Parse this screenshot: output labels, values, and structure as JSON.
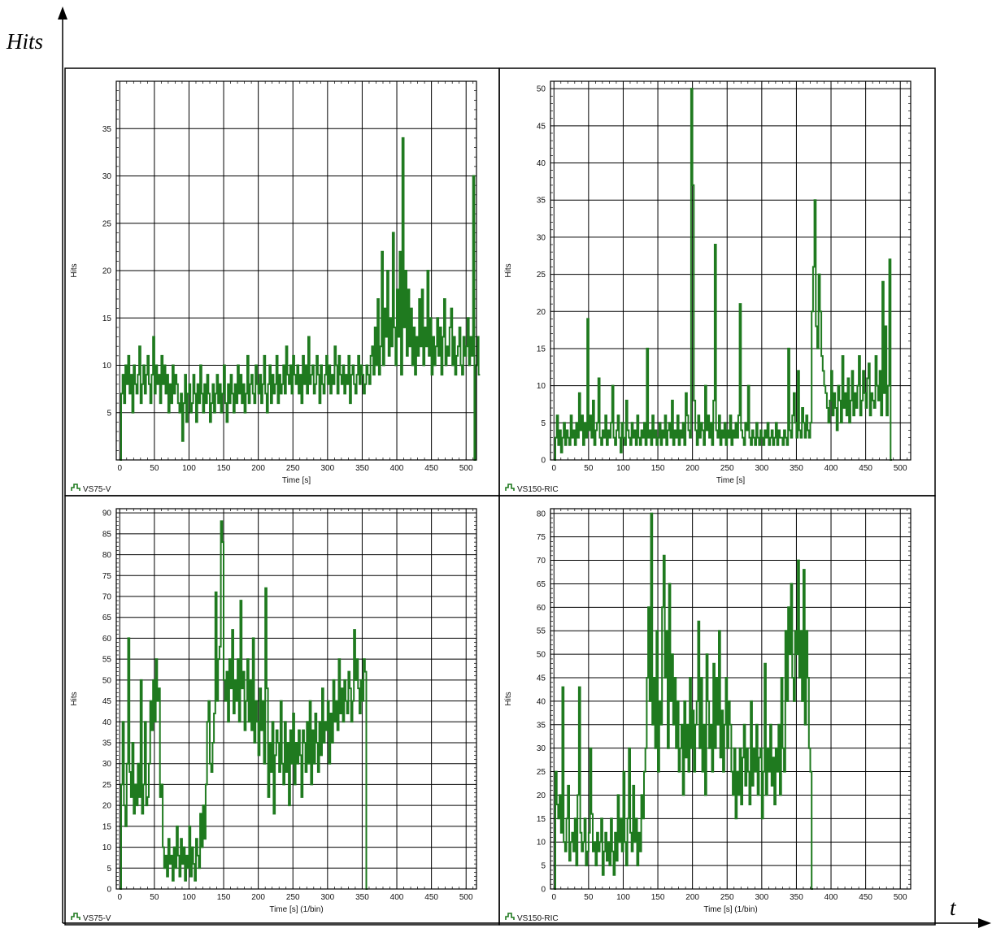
{
  "outer_axes": {
    "y_label": "Hits",
    "x_label": "t"
  },
  "colors": {
    "series": "#1f7a1f",
    "grid": "#000000",
    "frame": "#000000"
  },
  "chart_data": [
    {
      "type": "line",
      "legend": "VS75-V",
      "xlabel": "Time [s]",
      "ylabel": "Hits",
      "xlim": [
        -5,
        515
      ],
      "ylim": [
        0,
        40
      ],
      "xticks": [
        0,
        50,
        100,
        150,
        200,
        250,
        300,
        350,
        400,
        450,
        500
      ],
      "yticks": [
        5,
        10,
        15,
        20,
        25,
        30,
        35
      ],
      "step": 2,
      "series": [
        {
          "values": [
            0,
            7,
            9,
            6,
            10,
            8,
            11,
            7,
            9,
            5,
            10,
            8,
            7,
            9,
            12,
            6,
            8,
            10,
            7,
            9,
            11,
            8,
            6,
            9,
            13,
            7,
            10,
            8,
            9,
            6,
            11,
            8,
            10,
            7,
            9,
            5,
            8,
            6,
            10,
            7,
            9,
            8,
            6,
            5,
            7,
            2,
            6,
            9,
            4,
            7,
            8,
            5,
            6,
            9,
            7,
            4,
            8,
            6,
            10,
            7,
            5,
            8,
            6,
            9,
            7,
            4,
            6,
            8,
            5,
            7,
            9,
            6,
            8,
            5,
            7,
            10,
            6,
            4,
            8,
            6,
            9,
            7,
            5,
            8,
            6,
            10,
            7,
            9,
            6,
            8,
            5,
            7,
            11,
            6,
            8,
            9,
            7,
            6,
            10,
            8,
            7,
            9,
            6,
            8,
            11,
            7,
            5,
            8,
            10,
            6,
            9,
            7,
            8,
            11,
            6,
            9,
            7,
            8,
            10,
            7,
            12,
            9,
            8,
            10,
            7,
            11,
            9,
            8,
            10,
            7,
            9,
            6,
            11,
            8,
            10,
            7,
            13,
            8,
            9,
            10,
            7,
            8,
            11,
            9,
            6,
            10,
            8,
            7,
            9,
            11,
            8,
            10,
            7,
            9,
            8,
            12,
            10,
            7,
            11,
            9,
            8,
            10,
            7,
            9,
            8,
            11,
            6,
            9,
            10,
            8,
            7,
            9,
            11,
            8,
            10,
            9,
            7,
            8,
            10,
            9,
            8,
            11,
            12,
            9,
            14,
            10,
            17,
            9,
            12,
            22,
            10,
            16,
            13,
            20,
            11,
            15,
            12,
            24,
            14,
            10,
            18,
            13,
            22,
            9,
            34,
            14,
            20,
            11,
            18,
            12,
            16,
            10,
            14,
            9,
            13,
            11,
            17,
            12,
            18,
            10,
            14,
            12,
            20,
            11,
            15,
            9,
            13,
            10,
            12,
            15,
            11,
            14,
            9,
            13,
            17,
            10,
            12,
            11,
            14,
            16,
            10,
            13,
            9,
            11,
            12,
            14,
            10,
            9,
            13,
            11,
            12,
            15,
            10,
            13,
            11,
            30,
            0,
            10,
            13,
            9
          ]
        }
      ]
    },
    {
      "type": "line",
      "legend": "VS150-RIC",
      "xlabel": "Time [s]",
      "ylabel": "Hits",
      "xlim": [
        -5,
        515
      ],
      "ylim": [
        0,
        51
      ],
      "xticks": [
        0,
        50,
        100,
        150,
        200,
        250,
        300,
        350,
        400,
        450,
        500
      ],
      "yticks": [
        0,
        5,
        10,
        15,
        20,
        25,
        30,
        35,
        40,
        45,
        50
      ],
      "step": 2,
      "series": [
        {
          "values": [
            0,
            3,
            6,
            2,
            4,
            1,
            3,
            5,
            2,
            4,
            3,
            2,
            6,
            3,
            4,
            2,
            5,
            3,
            9,
            4,
            6,
            2,
            5,
            3,
            19,
            4,
            6,
            3,
            8,
            2,
            4,
            5,
            11,
            3,
            2,
            4,
            3,
            6,
            2,
            4,
            3,
            5,
            10,
            3,
            2,
            4,
            6,
            3,
            1,
            5,
            3,
            2,
            8,
            4,
            3,
            2,
            5,
            3,
            4,
            2,
            6,
            3,
            2,
            4,
            3,
            5,
            2,
            15,
            3,
            4,
            2,
            6,
            3,
            4,
            2,
            3,
            5,
            2,
            4,
            3,
            6,
            2,
            4,
            5,
            3,
            8,
            2,
            4,
            3,
            6,
            2,
            4,
            3,
            5,
            2,
            9,
            6,
            4,
            3,
            50,
            37,
            8,
            4,
            2,
            6,
            3,
            5,
            4,
            2,
            10,
            4,
            6,
            3,
            5,
            2,
            8,
            29,
            4,
            3,
            6,
            2,
            4,
            3,
            5,
            2,
            4,
            3,
            6,
            2,
            4,
            3,
            5,
            3,
            6,
            21,
            4,
            3,
            2,
            5,
            4,
            10,
            3,
            2,
            4,
            3,
            2,
            5,
            3,
            2,
            4,
            3,
            2,
            4,
            3,
            5,
            2,
            3,
            4,
            2,
            3,
            5,
            2,
            4,
            3,
            3,
            2,
            4,
            3,
            2,
            15,
            4,
            3,
            6,
            9,
            5,
            3,
            12,
            4,
            3,
            7,
            5,
            3,
            6,
            4,
            3,
            5,
            20,
            26,
            35,
            18,
            15,
            25,
            20,
            14,
            12,
            10,
            9,
            7,
            5,
            8,
            12,
            6,
            9,
            7,
            4,
            10,
            8,
            5,
            14,
            7,
            9,
            6,
            11,
            5,
            8,
            12,
            6,
            9,
            7,
            10,
            14,
            6,
            8,
            12,
            9,
            7,
            11,
            13,
            6,
            9,
            8,
            7,
            14,
            10,
            8,
            12,
            6,
            24,
            9,
            18,
            6,
            10,
            27,
            0
          ]
        }
      ]
    },
    {
      "type": "line",
      "legend": "VS75-V",
      "xlabel": "Time [s] (1/bin)",
      "ylabel": "Hits",
      "xlim": [
        -5,
        515
      ],
      "ylim": [
        0,
        91
      ],
      "xticks": [
        0,
        50,
        100,
        150,
        200,
        250,
        300,
        350,
        400,
        450,
        500
      ],
      "yticks": [
        0,
        5,
        10,
        15,
        20,
        25,
        30,
        35,
        40,
        45,
        50,
        55,
        60,
        65,
        70,
        75,
        80,
        85,
        90
      ],
      "step": 2,
      "series": [
        {
          "values": [
            0,
            25,
            40,
            20,
            15,
            30,
            60,
            28,
            22,
            35,
            18,
            25,
            20,
            30,
            22,
            50,
            18,
            25,
            40,
            20,
            22,
            30,
            45,
            38,
            50,
            40,
            55,
            45,
            48,
            22,
            25,
            10,
            5,
            8,
            3,
            12,
            6,
            8,
            2,
            10,
            5,
            15,
            8,
            3,
            12,
            6,
            10,
            2,
            8,
            5,
            15,
            3,
            10,
            6,
            2,
            12,
            8,
            5,
            18,
            10,
            20,
            12,
            25,
            40,
            45,
            30,
            28,
            35,
            42,
            71,
            45,
            55,
            58,
            88,
            83,
            50,
            45,
            52,
            40,
            55,
            48,
            62,
            42,
            50,
            45,
            55,
            40,
            69,
            48,
            52,
            38,
            45,
            55,
            40,
            50,
            38,
            60,
            35,
            45,
            40,
            32,
            48,
            38,
            45,
            30,
            72,
            48,
            22,
            35,
            28,
            40,
            18,
            32,
            38,
            35,
            28,
            45,
            30,
            25,
            40,
            28,
            35,
            20,
            38,
            30,
            42,
            25,
            35,
            30,
            38,
            32,
            22,
            38,
            35,
            28,
            40,
            30,
            45,
            25,
            38,
            30,
            42,
            35,
            28,
            40,
            32,
            48,
            35,
            40,
            38,
            45,
            30,
            42,
            35,
            50,
            40,
            45,
            38,
            55,
            42,
            48,
            40,
            50,
            45,
            42,
            52,
            48,
            40,
            45,
            62,
            50,
            55,
            48,
            42,
            50,
            45,
            55,
            52,
            0
          ]
        }
      ]
    },
    {
      "type": "line",
      "legend": "VS150-RIC",
      "xlabel": "Time [s] (1/bin)",
      "ylabel": "Hits",
      "xlim": [
        -5,
        515
      ],
      "ylim": [
        0,
        81
      ],
      "xticks": [
        0,
        50,
        100,
        150,
        200,
        250,
        300,
        350,
        400,
        450,
        500
      ],
      "yticks": [
        0,
        5,
        10,
        15,
        20,
        25,
        30,
        35,
        40,
        45,
        50,
        55,
        60,
        65,
        70,
        75,
        80
      ],
      "step": 2,
      "series": [
        {
          "values": [
            0,
            25,
            18,
            15,
            20,
            12,
            43,
            10,
            8,
            15,
            22,
            6,
            10,
            12,
            8,
            15,
            5,
            20,
            43,
            12,
            8,
            10,
            15,
            5,
            8,
            12,
            30,
            16,
            8,
            10,
            5,
            12,
            8,
            10,
            15,
            3,
            8,
            12,
            6,
            10,
            5,
            15,
            8,
            3,
            12,
            6,
            20,
            10,
            15,
            8,
            25,
            10,
            5,
            15,
            30,
            12,
            8,
            22,
            10,
            15,
            5,
            12,
            8,
            20,
            15,
            25,
            30,
            45,
            60,
            40,
            80,
            35,
            45,
            30,
            55,
            25,
            40,
            35,
            60,
            71,
            45,
            55,
            30,
            65,
            40,
            50,
            35,
            45,
            30,
            40,
            25,
            30,
            35,
            20,
            40,
            28,
            35,
            25,
            45,
            30,
            38,
            25,
            35,
            40,
            57,
            30,
            45,
            25,
            35,
            20,
            50,
            40,
            30,
            35,
            25,
            48,
            30,
            45,
            35,
            55,
            28,
            38,
            25,
            35,
            45,
            30,
            40,
            35,
            25,
            20,
            30,
            15,
            25,
            20,
            30,
            18,
            28,
            35,
            22,
            30,
            25,
            18,
            40,
            22,
            30,
            25,
            35,
            20,
            28,
            30,
            15,
            25,
            48,
            20,
            30,
            25,
            35,
            22,
            28,
            18,
            30,
            25,
            35,
            20,
            45,
            30,
            25,
            55,
            40,
            60,
            50,
            65,
            45,
            40,
            55,
            50,
            70,
            45,
            55,
            40,
            68,
            35,
            55,
            45,
            30,
            25,
            0
          ]
        }
      ]
    }
  ]
}
